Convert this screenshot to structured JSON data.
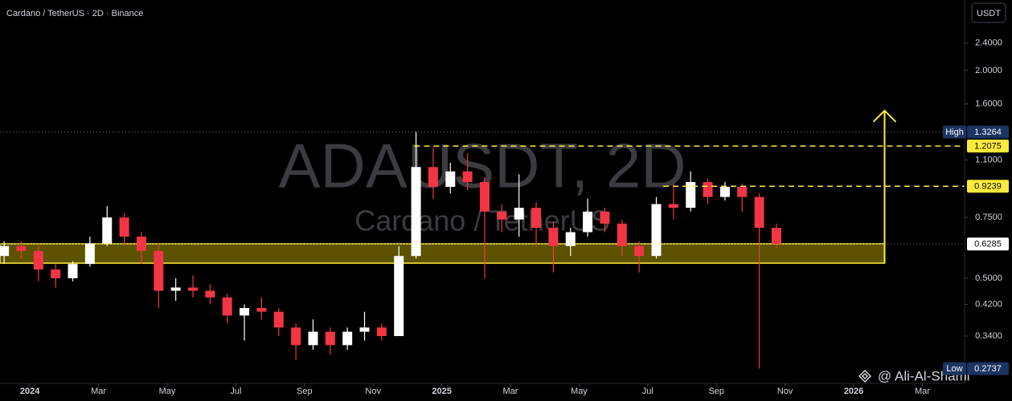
{
  "chart_data": {
    "type": "candlestick",
    "title": "Cardano / TetherUS · 2D · Binance",
    "watermark": "ADAUSDT, 2D",
    "watermark_subtitle": "Cardano / TetherUS",
    "currency_button": "USDT",
    "author": "@ Ali-Al-Shami",
    "y_scale": "log",
    "ylim": [
      0.248,
      3.2
    ],
    "yticks": [
      {
        "value": 2.4,
        "label": "2.4000"
      },
      {
        "value": 2.0,
        "label": "2.0000"
      },
      {
        "value": 1.6,
        "label": "1.6000"
      },
      {
        "value": 1.1,
        "label": "1.1000"
      },
      {
        "value": 0.75,
        "label": "0.7500"
      },
      {
        "value": 0.5,
        "label": "0.5000"
      },
      {
        "value": 0.42,
        "label": "0.4200"
      },
      {
        "value": 0.34,
        "label": "0.3400"
      }
    ],
    "xlim": [
      -0.87,
      27.23
    ],
    "xticks": [
      {
        "value": 0,
        "label": "2024"
      },
      {
        "value": 2,
        "label": "Mar"
      },
      {
        "value": 4,
        "label": "May"
      },
      {
        "value": 6,
        "label": "Jul"
      },
      {
        "value": 8,
        "label": "Sep"
      },
      {
        "value": 10,
        "label": "Nov"
      },
      {
        "value": 12,
        "label": "2025"
      },
      {
        "value": 14,
        "label": "Mar"
      },
      {
        "value": 16,
        "label": "May"
      },
      {
        "value": 18,
        "label": "Jul"
      },
      {
        "value": 20,
        "label": "Sep"
      },
      {
        "value": 22,
        "label": "Nov"
      },
      {
        "value": 24,
        "label": "2026"
      },
      {
        "value": 26,
        "label": "Mar"
      }
    ],
    "up_color": "#ffffff",
    "down_color": "#f23645",
    "candles": {
      "x": [
        -0.75,
        -0.25,
        0.25,
        0.75,
        1.25,
        1.75,
        2.25,
        2.75,
        3.25,
        3.75,
        4.25,
        4.75,
        5.25,
        5.75,
        6.25,
        6.75,
        7.25,
        7.75,
        8.25,
        8.75,
        9.25,
        9.75,
        10.25,
        10.75,
        11.25,
        11.75,
        12.25,
        12.75,
        13.25,
        13.75,
        14.25,
        14.75,
        15.25,
        15.75,
        16.25,
        16.75,
        17.25,
        17.75,
        18.25,
        18.75,
        19.25,
        19.75,
        20.25,
        20.75,
        21.25,
        21.75
      ],
      "open": [
        0.58,
        0.62,
        0.6,
        0.53,
        0.5,
        0.55,
        0.63,
        0.75,
        0.66,
        0.6,
        0.46,
        0.47,
        0.46,
        0.44,
        0.39,
        0.41,
        0.4,
        0.36,
        0.32,
        0.35,
        0.32,
        0.35,
        0.36,
        0.34,
        0.58,
        1.05,
        0.92,
        1.02,
        0.95,
        0.78,
        0.74,
        0.8,
        0.7,
        0.62,
        0.68,
        0.78,
        0.72,
        0.62,
        0.58,
        0.82,
        0.8,
        0.95,
        0.86,
        0.92,
        0.86,
        0.7
      ],
      "high": [
        0.64,
        0.64,
        0.62,
        0.55,
        0.56,
        0.66,
        0.81,
        0.77,
        0.68,
        0.63,
        0.5,
        0.51,
        0.48,
        0.45,
        0.42,
        0.44,
        0.41,
        0.37,
        0.38,
        0.36,
        0.36,
        0.4,
        0.37,
        0.62,
        1.3264,
        1.2,
        1.08,
        1.15,
        0.98,
        0.82,
        1.0,
        0.83,
        0.73,
        0.7,
        0.85,
        0.8,
        0.74,
        0.64,
        0.86,
        0.94,
        1.02,
        0.97,
        0.95,
        0.94,
        0.88,
        0.72
      ],
      "low": [
        0.55,
        0.57,
        0.49,
        0.47,
        0.49,
        0.54,
        0.62,
        0.62,
        0.55,
        0.41,
        0.43,
        0.44,
        0.42,
        0.37,
        0.33,
        0.38,
        0.34,
        0.29,
        0.31,
        0.3,
        0.31,
        0.33,
        0.33,
        0.34,
        0.57,
        0.85,
        0.88,
        0.9,
        0.5,
        0.68,
        0.66,
        0.62,
        0.52,
        0.58,
        0.66,
        0.68,
        0.58,
        0.52,
        0.57,
        0.74,
        0.78,
        0.82,
        0.84,
        0.78,
        0.2737,
        0.61
      ],
      "close": [
        0.62,
        0.6,
        0.53,
        0.5,
        0.55,
        0.63,
        0.75,
        0.66,
        0.6,
        0.46,
        0.47,
        0.46,
        0.44,
        0.39,
        0.41,
        0.4,
        0.36,
        0.32,
        0.35,
        0.32,
        0.35,
        0.36,
        0.34,
        0.58,
        1.05,
        0.92,
        1.02,
        0.95,
        0.78,
        0.74,
        0.8,
        0.7,
        0.62,
        0.68,
        0.78,
        0.72,
        0.62,
        0.58,
        0.82,
        0.8,
        0.95,
        0.86,
        0.92,
        0.86,
        0.7,
        0.6285
      ]
    },
    "zone": {
      "low": 0.553,
      "high": 0.629,
      "x_end": 24.9,
      "color": "#ffeb3b",
      "fill": "#5c5200"
    },
    "arrow": {
      "x": 24.9,
      "from": 0.553,
      "to": 1.53,
      "color": "#ffeb3b"
    },
    "dashed_levels": [
      {
        "value": 1.2075,
        "x_start": 11.2,
        "color": "#ffeb3b"
      },
      {
        "value": 0.9239,
        "x_start": 18.45,
        "color": "#ffeb3b"
      }
    ],
    "price_labels": [
      {
        "label": "High",
        "value": 1.3264,
        "color": "#1c3461",
        "text_color": "#ffffff",
        "dotted": true
      },
      {
        "value": 1.2075,
        "color": "#ffeb3b",
        "text_color": "#000000"
      },
      {
        "value": 0.9239,
        "color": "#ffeb3b",
        "text_color": "#000000"
      },
      {
        "value": 0.6285,
        "color": "#ffffff",
        "text_color": "#000000",
        "dotted": true
      },
      {
        "label": "Low",
        "value": 0.2737,
        "color": "#1c3461",
        "text_color": "#ffffff"
      }
    ]
  }
}
